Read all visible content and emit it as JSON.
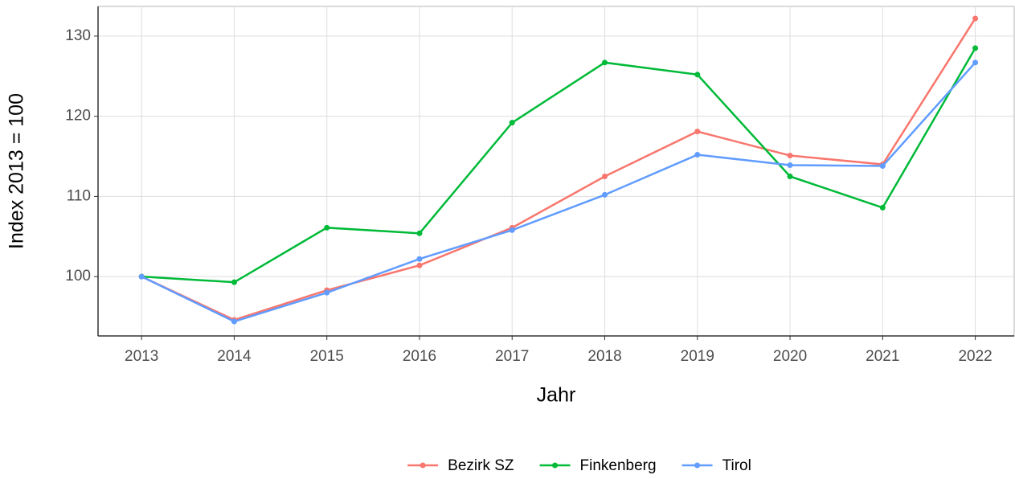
{
  "chart_data": {
    "type": "line",
    "x_label": "Jahr",
    "y_label": "Index  2013  = 100",
    "x": [
      2013,
      2014,
      2015,
      2016,
      2017,
      2018,
      2019,
      2020,
      2021,
      2022
    ],
    "series": [
      {
        "name": "Bezirk SZ",
        "color": "#F8766D",
        "values": [
          100,
          94.6,
          98.3,
          101.4,
          106.1,
          112.5,
          118.1,
          115.1,
          114.0,
          132.2
        ]
      },
      {
        "name": "Finkenberg",
        "color": "#00BA38",
        "values": [
          100,
          99.3,
          106.1,
          105.4,
          119.2,
          126.7,
          125.2,
          112.5,
          108.6,
          128.5
        ]
      },
      {
        "name": "Tirol",
        "color": "#619CFF",
        "values": [
          100,
          94.4,
          98.0,
          102.2,
          105.8,
          110.2,
          115.2,
          113.9,
          113.8,
          126.7
        ]
      }
    ],
    "xlim": [
      2012.53,
      2022.42
    ],
    "xticks": [
      2013,
      2014,
      2015,
      2016,
      2017,
      2018,
      2019,
      2020,
      2021,
      2022
    ],
    "ylim": [
      92.6,
      133.7
    ],
    "yticks": [
      100,
      110,
      120,
      130
    ],
    "grid": true,
    "legend": "bottom"
  }
}
